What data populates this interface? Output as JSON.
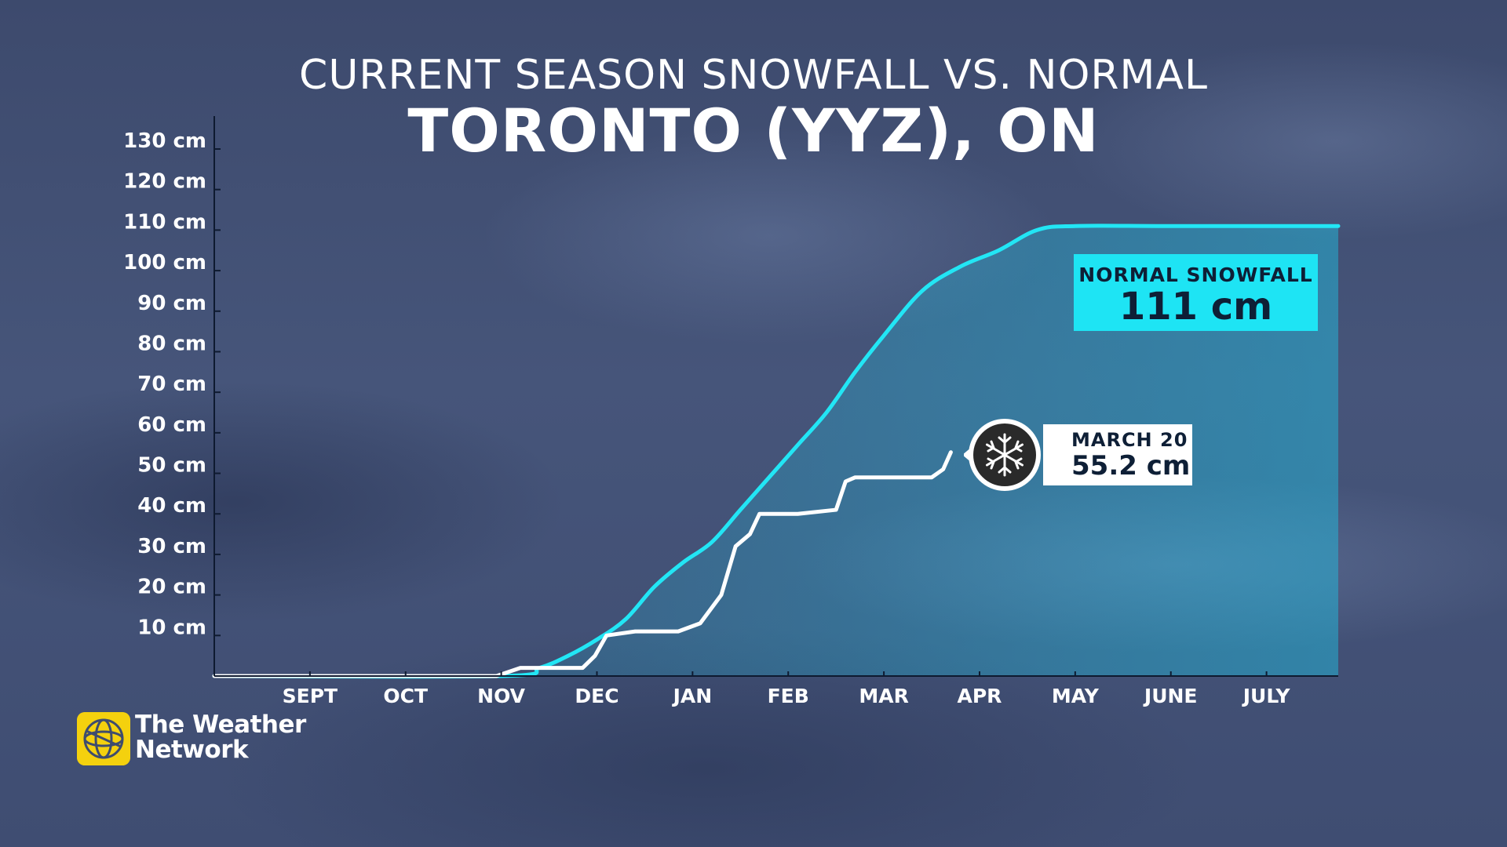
{
  "header": {
    "title": "CURRENT SEASON SNOWFALL VS. NORMAL",
    "subtitle": "TORONTO (YYZ), ON"
  },
  "callouts": {
    "normal_label": "NORMAL SNOWFALL",
    "normal_value": "111 cm",
    "current_label": "MARCH 20",
    "current_value": "55.2 cm"
  },
  "brand": {
    "line1": "The Weather",
    "line2": "Network"
  },
  "icons": {
    "current_marker": "snowflake-icon",
    "logo": "weather-network-globe-icon"
  },
  "colors": {
    "normal_line": "#22e6f5",
    "normal_fill": "#1ec3e6",
    "current_line": "#ffffff",
    "logo_yellow": "#f4d10e"
  },
  "chart_data": {
    "type": "line",
    "title": "CURRENT SEASON SNOWFALL VS. NORMAL",
    "subtitle": "TORONTO (YYZ), ON",
    "y_ticks": [
      "10 cm",
      "20 cm",
      "30 cm",
      "40 cm",
      "50 cm",
      "60 cm",
      "70 cm",
      "80 cm",
      "90 cm",
      "100 cm",
      "110 cm",
      "120 cm",
      "130 cm"
    ],
    "ylim": [
      0,
      140
    ],
    "x_ticks": [
      "SEPT",
      "OCT",
      "NOV",
      "DEC",
      "JAN",
      "FEB",
      "MAR",
      "APR",
      "MAY",
      "JUNE",
      "JULY"
    ],
    "xlim": [
      0,
      12
    ],
    "grid": false,
    "series": [
      {
        "name": "NORMAL SNOWFALL",
        "style": "area",
        "x": [
          0,
          3.0,
          3.4,
          3.7,
          4.0,
          4.3,
          4.6,
          4.9,
          5.2,
          5.5,
          5.8,
          6.1,
          6.4,
          6.7,
          7.0,
          7.4,
          7.8,
          8.2,
          8.6,
          9.0,
          10.0,
          12.0
        ],
        "y": [
          0,
          0,
          2,
          5,
          9,
          14,
          22,
          28,
          33,
          41,
          49,
          57,
          65,
          75,
          84,
          95,
          101,
          105,
          110,
          111,
          111,
          111
        ]
      },
      {
        "name": "MARCH 20",
        "style": "line",
        "x": [
          0,
          2.95,
          3.2,
          3.85,
          3.98,
          4.1,
          4.4,
          4.85,
          5.08,
          5.3,
          5.45,
          5.6,
          5.7,
          6.1,
          6.5,
          6.6,
          6.7,
          7.2,
          7.5,
          7.62,
          7.7
        ],
        "y": [
          0,
          0,
          2,
          2,
          5,
          10,
          11,
          11,
          13,
          20,
          32,
          35,
          40,
          40,
          41,
          48,
          49,
          49,
          49,
          51,
          55.2
        ]
      }
    ]
  }
}
